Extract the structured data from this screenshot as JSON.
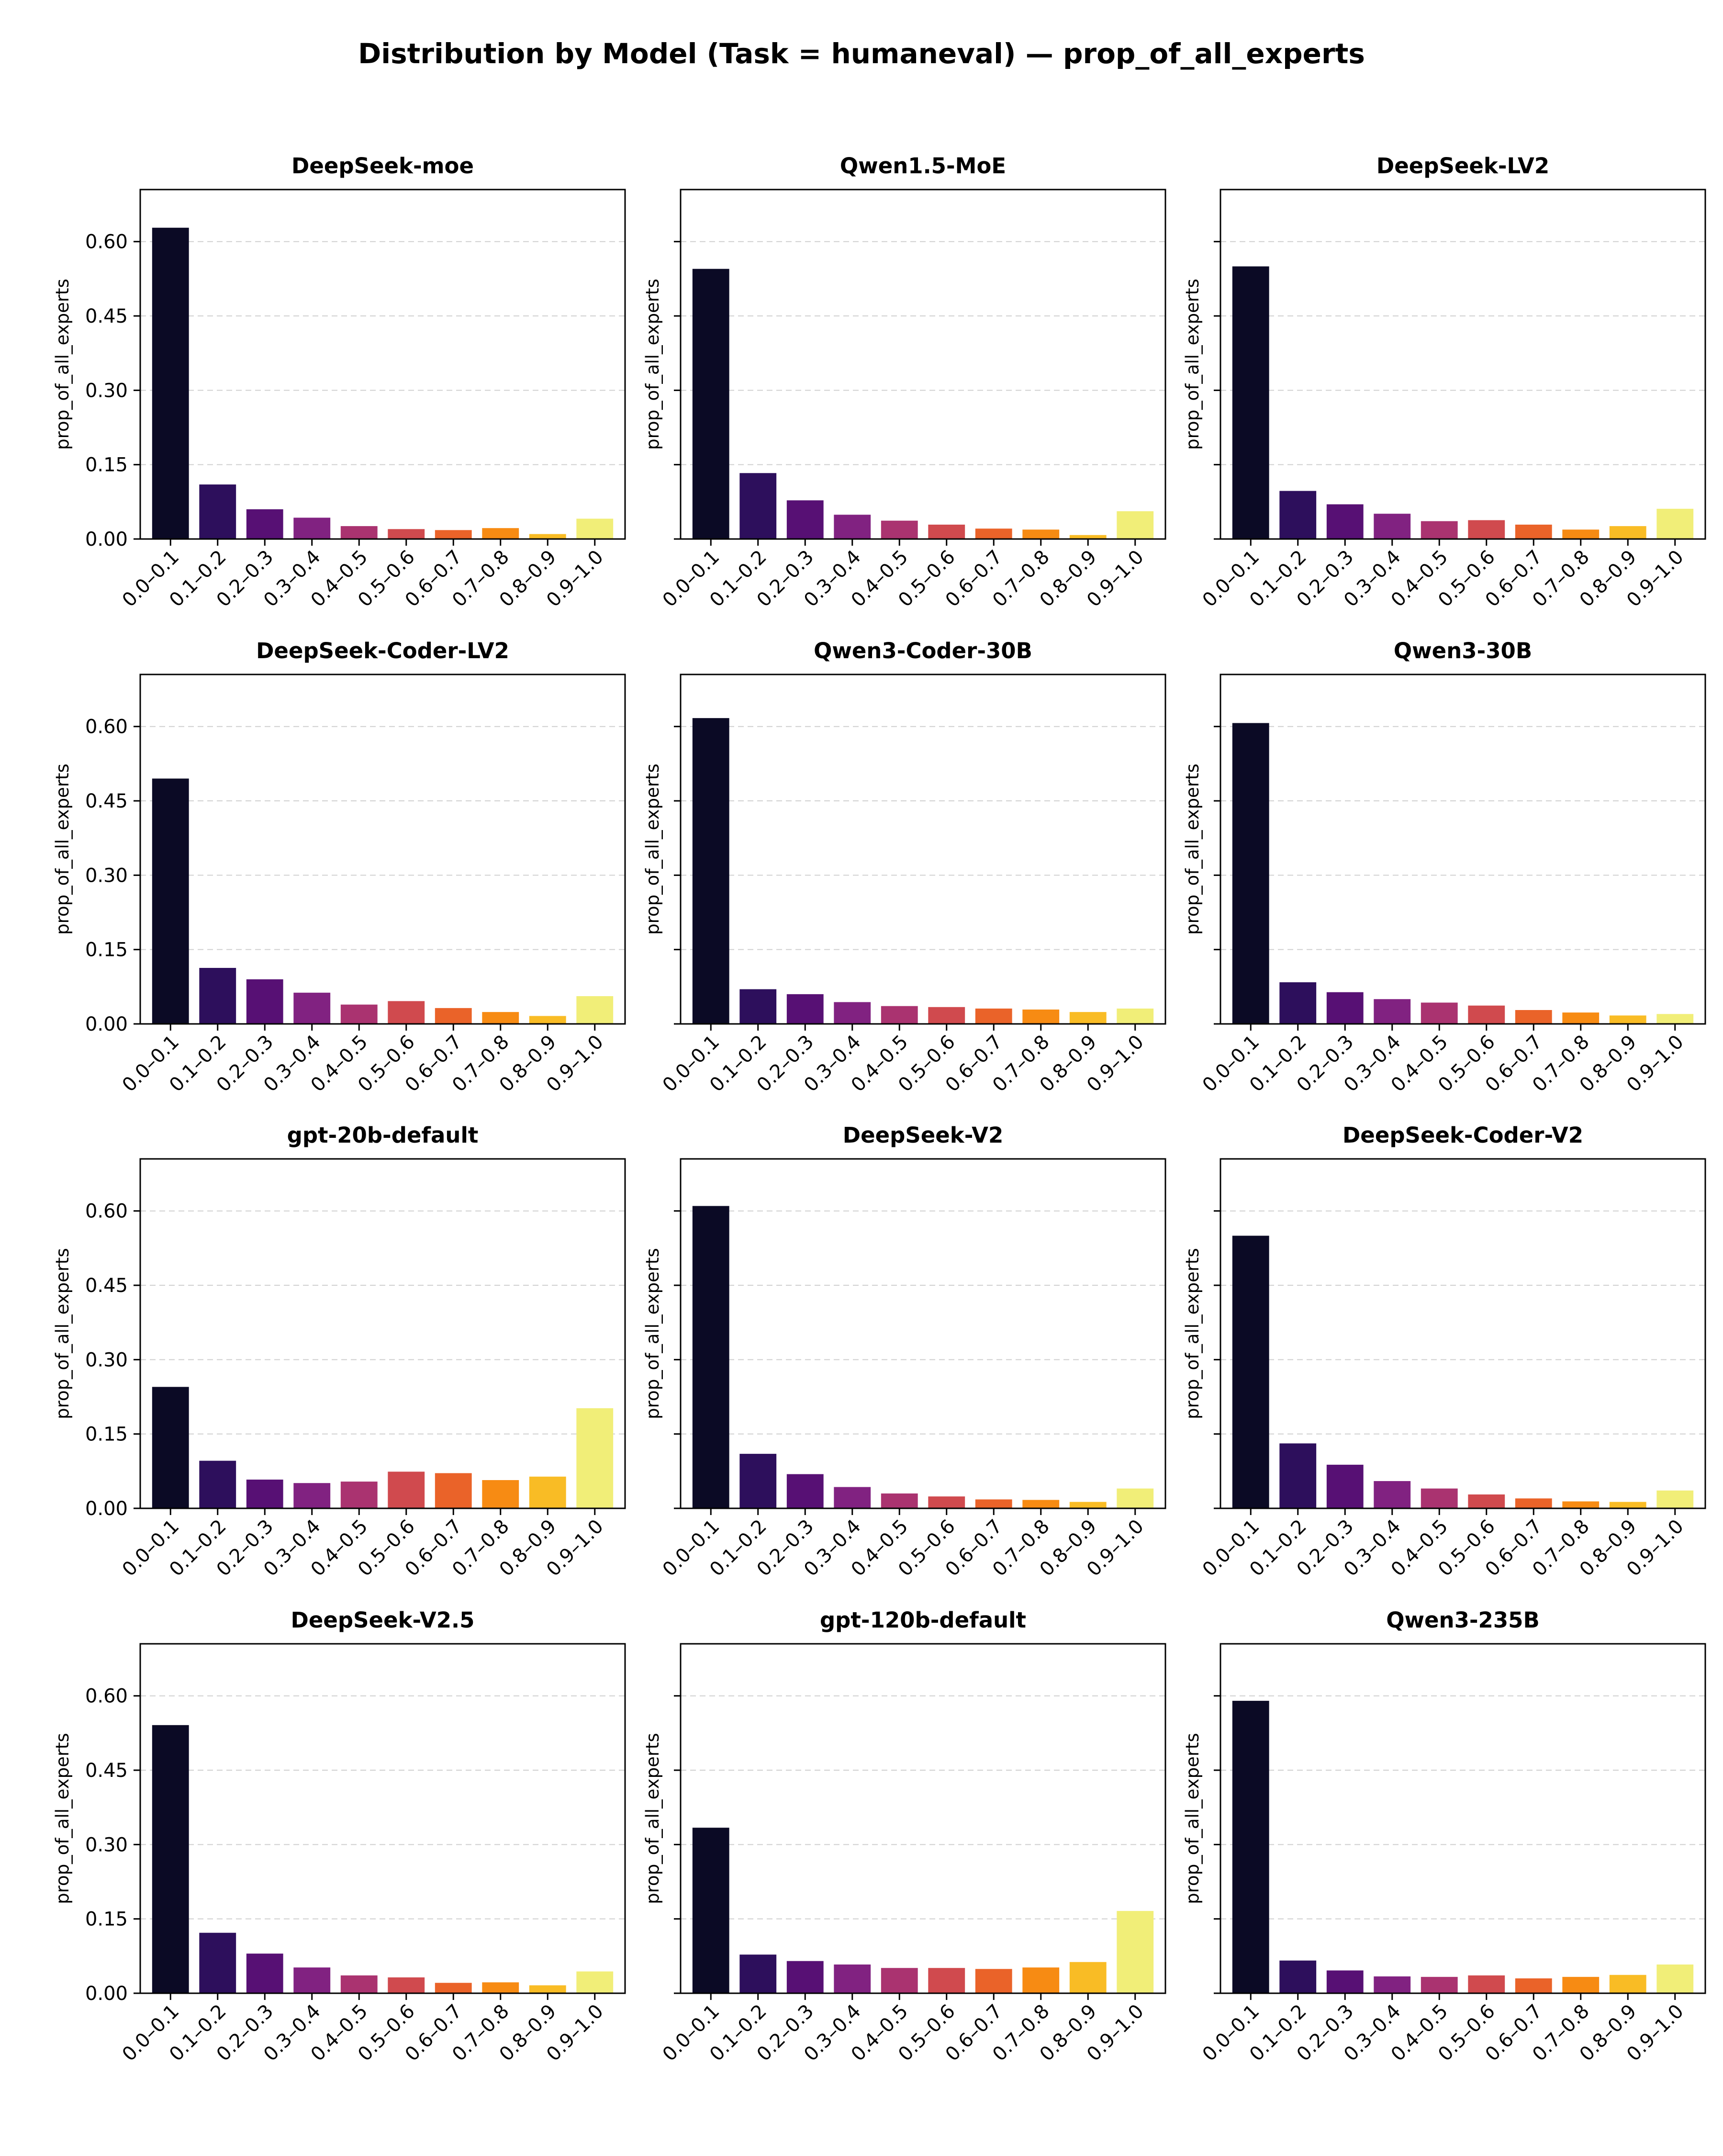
{
  "figure": {
    "title": "Distribution by Model (Task = humaneval) — prop_of_all_experts"
  },
  "chart_data": [
    {
      "type": "bar",
      "title": "DeepSeek-moe",
      "ylabel": "prop_of_all_experts",
      "ylim": [
        0,
        0.705
      ],
      "yticks": [
        "0.00",
        "0.15",
        "0.30",
        "0.45",
        "0.60"
      ],
      "grid": true,
      "categories": [
        "0.0–0.1",
        "0.1–0.2",
        "0.2–0.3",
        "0.3–0.4",
        "0.4–0.5",
        "0.5–0.6",
        "0.6–0.7",
        "0.7–0.8",
        "0.8–0.9",
        "0.9–1.0"
      ],
      "values": [
        0.628,
        0.11,
        0.06,
        0.043,
        0.026,
        0.02,
        0.018,
        0.022,
        0.01,
        0.041
      ]
    },
    {
      "type": "bar",
      "title": "Qwen1.5-MoE",
      "ylabel": "prop_of_all_experts",
      "ylim": [
        0,
        0.705
      ],
      "yticks": [
        "0.00",
        "0.15",
        "0.30",
        "0.45",
        "0.60"
      ],
      "grid": true,
      "categories": [
        "0.0–0.1",
        "0.1–0.2",
        "0.2–0.3",
        "0.3–0.4",
        "0.4–0.5",
        "0.5–0.6",
        "0.6–0.7",
        "0.7–0.8",
        "0.8–0.9",
        "0.9–1.0"
      ],
      "values": [
        0.545,
        0.133,
        0.078,
        0.049,
        0.037,
        0.029,
        0.021,
        0.019,
        0.008,
        0.056
      ]
    },
    {
      "type": "bar",
      "title": "DeepSeek-LV2",
      "ylabel": "prop_of_all_experts",
      "ylim": [
        0,
        0.705
      ],
      "yticks": [
        "0.00",
        "0.15",
        "0.30",
        "0.45",
        "0.60"
      ],
      "grid": true,
      "categories": [
        "0.0–0.1",
        "0.1–0.2",
        "0.2–0.3",
        "0.3–0.4",
        "0.4–0.5",
        "0.5–0.6",
        "0.6–0.7",
        "0.7–0.8",
        "0.8–0.9",
        "0.9–1.0"
      ],
      "values": [
        0.55,
        0.097,
        0.07,
        0.051,
        0.036,
        0.038,
        0.029,
        0.019,
        0.026,
        0.061
      ]
    },
    {
      "type": "bar",
      "title": "DeepSeek-Coder-LV2",
      "ylabel": "prop_of_all_experts",
      "ylim": [
        0,
        0.705
      ],
      "yticks": [
        "0.00",
        "0.15",
        "0.30",
        "0.45",
        "0.60"
      ],
      "grid": true,
      "categories": [
        "0.0–0.1",
        "0.1–0.2",
        "0.2–0.3",
        "0.3–0.4",
        "0.4–0.5",
        "0.5–0.6",
        "0.6–0.7",
        "0.7–0.8",
        "0.8–0.9",
        "0.9–1.0"
      ],
      "values": [
        0.495,
        0.113,
        0.09,
        0.063,
        0.039,
        0.046,
        0.032,
        0.024,
        0.016,
        0.056
      ]
    },
    {
      "type": "bar",
      "title": "Qwen3-Coder-30B",
      "ylabel": "prop_of_all_experts",
      "ylim": [
        0,
        0.705
      ],
      "yticks": [
        "0.00",
        "0.15",
        "0.30",
        "0.45",
        "0.60"
      ],
      "grid": true,
      "categories": [
        "0.0–0.1",
        "0.1–0.2",
        "0.2–0.3",
        "0.3–0.4",
        "0.4–0.5",
        "0.5–0.6",
        "0.6–0.7",
        "0.7–0.8",
        "0.8–0.9",
        "0.9–1.0"
      ],
      "values": [
        0.617,
        0.07,
        0.06,
        0.044,
        0.036,
        0.034,
        0.031,
        0.029,
        0.024,
        0.031
      ]
    },
    {
      "type": "bar",
      "title": "Qwen3-30B",
      "ylabel": "prop_of_all_experts",
      "ylim": [
        0,
        0.705
      ],
      "yticks": [
        "0.00",
        "0.15",
        "0.30",
        "0.45",
        "0.60"
      ],
      "grid": true,
      "categories": [
        "0.0–0.1",
        "0.1–0.2",
        "0.2–0.3",
        "0.3–0.4",
        "0.4–0.5",
        "0.5–0.6",
        "0.6–0.7",
        "0.7–0.8",
        "0.8–0.9",
        "0.9–1.0"
      ],
      "values": [
        0.607,
        0.084,
        0.064,
        0.05,
        0.043,
        0.037,
        0.028,
        0.023,
        0.017,
        0.02
      ]
    },
    {
      "type": "bar",
      "title": "gpt-20b-default",
      "ylabel": "prop_of_all_experts",
      "ylim": [
        0,
        0.705
      ],
      "yticks": [
        "0.00",
        "0.15",
        "0.30",
        "0.45",
        "0.60"
      ],
      "grid": true,
      "categories": [
        "0.0–0.1",
        "0.1–0.2",
        "0.2–0.3",
        "0.3–0.4",
        "0.4–0.5",
        "0.5–0.6",
        "0.6–0.7",
        "0.7–0.8",
        "0.8–0.9",
        "0.9–1.0"
      ],
      "values": [
        0.245,
        0.096,
        0.058,
        0.051,
        0.054,
        0.074,
        0.071,
        0.057,
        0.064,
        0.202
      ]
    },
    {
      "type": "bar",
      "title": "DeepSeek-V2",
      "ylabel": "prop_of_all_experts",
      "ylim": [
        0,
        0.705
      ],
      "yticks": [
        "0.00",
        "0.15",
        "0.30",
        "0.45",
        "0.60"
      ],
      "grid": true,
      "categories": [
        "0.0–0.1",
        "0.1–0.2",
        "0.2–0.3",
        "0.3–0.4",
        "0.4–0.5",
        "0.5–0.6",
        "0.6–0.7",
        "0.7–0.8",
        "0.8–0.9",
        "0.9–1.0"
      ],
      "values": [
        0.61,
        0.11,
        0.069,
        0.043,
        0.03,
        0.024,
        0.018,
        0.017,
        0.013,
        0.04
      ]
    },
    {
      "type": "bar",
      "title": "DeepSeek-Coder-V2",
      "ylabel": "prop_of_all_experts",
      "ylim": [
        0,
        0.705
      ],
      "yticks": [
        "0.00",
        "0.15",
        "0.30",
        "0.45",
        "0.60"
      ],
      "grid": true,
      "categories": [
        "0.0–0.1",
        "0.1–0.2",
        "0.2–0.3",
        "0.3–0.4",
        "0.4–0.5",
        "0.5–0.6",
        "0.6–0.7",
        "0.7–0.8",
        "0.8–0.9",
        "0.9–1.0"
      ],
      "values": [
        0.55,
        0.131,
        0.088,
        0.055,
        0.04,
        0.028,
        0.02,
        0.014,
        0.013,
        0.036
      ]
    },
    {
      "type": "bar",
      "title": "DeepSeek-V2.5",
      "ylabel": "prop_of_all_experts",
      "ylim": [
        0,
        0.705
      ],
      "yticks": [
        "0.00",
        "0.15",
        "0.30",
        "0.45",
        "0.60"
      ],
      "grid": true,
      "categories": [
        "0.0–0.1",
        "0.1–0.2",
        "0.2–0.3",
        "0.3–0.4",
        "0.4–0.5",
        "0.5–0.6",
        "0.6–0.7",
        "0.7–0.8",
        "0.8–0.9",
        "0.9–1.0"
      ],
      "values": [
        0.541,
        0.122,
        0.08,
        0.052,
        0.036,
        0.032,
        0.021,
        0.022,
        0.016,
        0.044
      ]
    },
    {
      "type": "bar",
      "title": "gpt-120b-default",
      "ylabel": "prop_of_all_experts",
      "ylim": [
        0,
        0.705
      ],
      "yticks": [
        "0.00",
        "0.15",
        "0.30",
        "0.45",
        "0.60"
      ],
      "grid": true,
      "categories": [
        "0.0–0.1",
        "0.1–0.2",
        "0.2–0.3",
        "0.3–0.4",
        "0.4–0.5",
        "0.5–0.6",
        "0.6–0.7",
        "0.7–0.8",
        "0.8–0.9",
        "0.9–1.0"
      ],
      "values": [
        0.334,
        0.078,
        0.065,
        0.058,
        0.051,
        0.051,
        0.049,
        0.052,
        0.063,
        0.166
      ]
    },
    {
      "type": "bar",
      "title": "Qwen3-235B",
      "ylabel": "prop_of_all_experts",
      "ylim": [
        0,
        0.705
      ],
      "yticks": [
        "0.00",
        "0.15",
        "0.30",
        "0.45",
        "0.60"
      ],
      "grid": true,
      "categories": [
        "0.0–0.1",
        "0.1–0.2",
        "0.2–0.3",
        "0.3–0.4",
        "0.4–0.5",
        "0.5–0.6",
        "0.6–0.7",
        "0.7–0.8",
        "0.8–0.9",
        "0.9–1.0"
      ],
      "values": [
        0.59,
        0.066,
        0.046,
        0.034,
        0.033,
        0.036,
        0.03,
        0.033,
        0.037,
        0.058
      ]
    }
  ],
  "palette": [
    "#0b0a25",
    "#2d0f5c",
    "#571074",
    "#812281",
    "#aa3370",
    "#d04a4e",
    "#ea6329",
    "#f78b13",
    "#f9bc25",
    "#f1ee78"
  ]
}
